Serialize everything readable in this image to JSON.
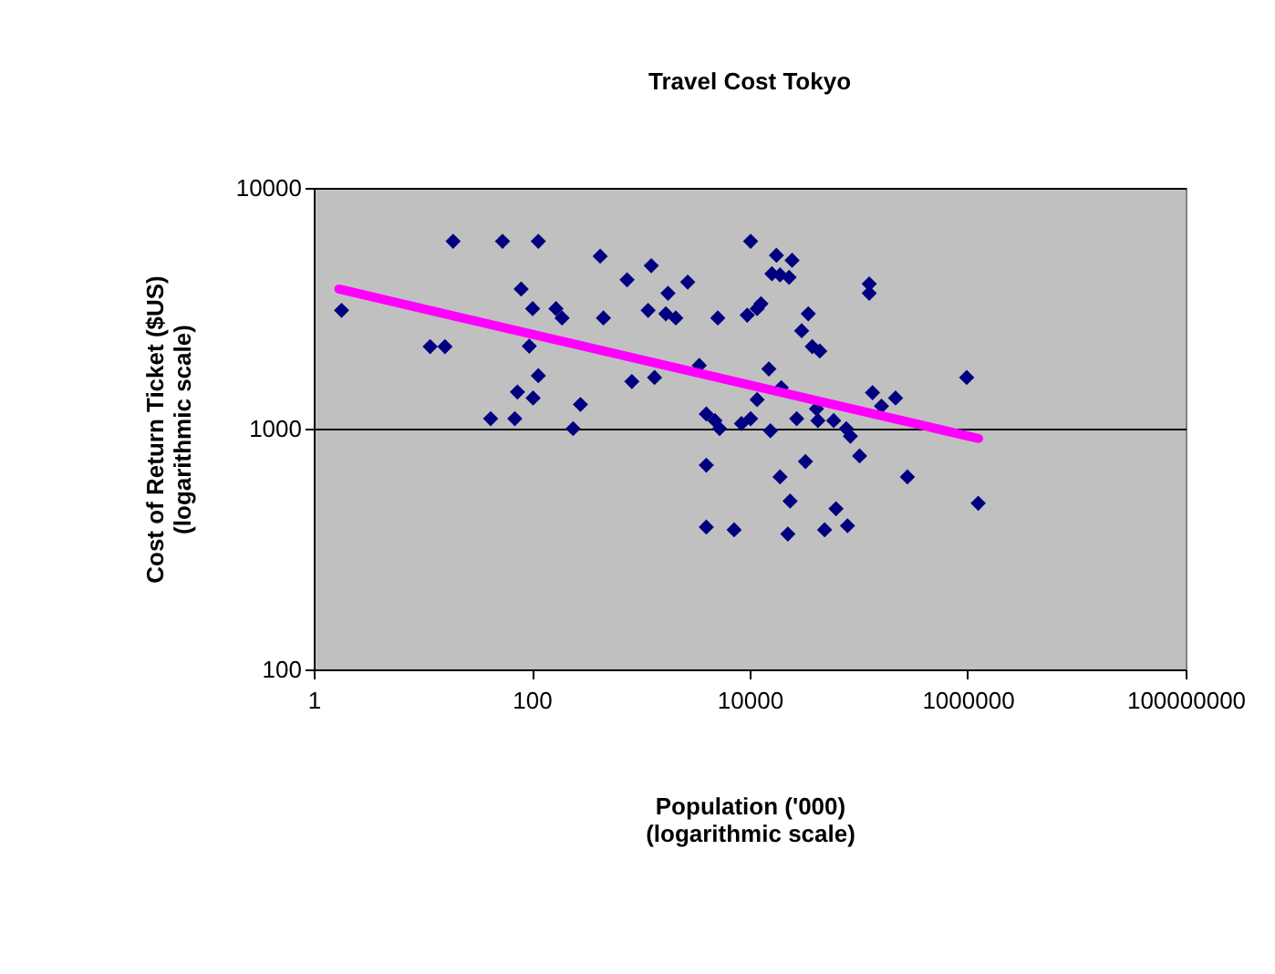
{
  "chart_data": {
    "type": "scatter",
    "title": "Travel Cost Tokyo",
    "xlabel": "Population ('000)\n(logarithmic scale)",
    "ylabel": "Cost of Return Ticket ($US)\n(logarithmic scale)",
    "log": "xy",
    "grid": "y",
    "xlim": [
      1,
      100000000
    ],
    "xticks": [
      1,
      100,
      10000,
      1000000,
      100000000
    ],
    "ylim": [
      100,
      10000
    ],
    "yticks": [
      100,
      1000,
      10000
    ],
    "series": [
      {
        "type": "scatter",
        "color": "#000080",
        "marker": "diamond",
        "x": [
          1.8,
          11.7,
          16,
          19,
          42,
          54,
          70,
          80,
          74,
          103,
          95,
          102,
          115,
          115,
          167,
          190,
          240,
          280,
          425,
          455,
          750,
          830,
          1250,
          1170,
          1340,
          1780,
          1700,
          2100,
          2700,
          5100,
          3450,
          4000,
          4800,
          5300,
          4000,
          4000,
          7200,
          8400,
          10200,
          9500,
          11700,
          12700,
          10200,
          11700,
          15000,
          15500,
          17600,
          16000,
          19000,
          23000,
          24500,
          19500,
          19000,
          23500,
          22400,
          27000,
          32500,
          30000,
          34500,
          37500,
          44000,
          41000,
          42300,
          48700,
          62000,
          59000,
          77000,
          84000,
          79000,
          102000,
          125000,
          125000,
          134000,
          162000,
          218000,
          280000,
          980000,
          1250000
        ],
        "values": [
          3100,
          2190,
          2190,
          6000,
          1100,
          6000,
          1100,
          3800,
          1420,
          1340,
          2200,
          3150,
          6000,
          1660,
          3150,
          2880,
          1000,
          1260,
          5200,
          2880,
          4150,
          1570,
          4750,
          3100,
          1630,
          3650,
          3000,
          2880,
          4060,
          2880,
          1830,
          1150,
          1080,
          1000,
          705,
          390,
          380,
          1050,
          6000,
          2960,
          3150,
          3300,
          1100,
          1320,
          1770,
          980,
          5250,
          4400,
          4350,
          4250,
          5000,
          1480,
          630,
          500,
          365,
          1100,
          730,
          2550,
          3000,
          2190,
          2100,
          1210,
          1080,
          380,
          465,
          1080,
          1000,
          930,
          395,
          770,
          3990,
          3650,
          1410,
          1240,
          1340,
          630,
          1630,
          490
        ]
      },
      {
        "type": "line",
        "color": "#ff00ff",
        "marker": "none",
        "x": [
          1.7,
          1260000
        ],
        "values": [
          3800,
          910
        ]
      }
    ]
  }
}
